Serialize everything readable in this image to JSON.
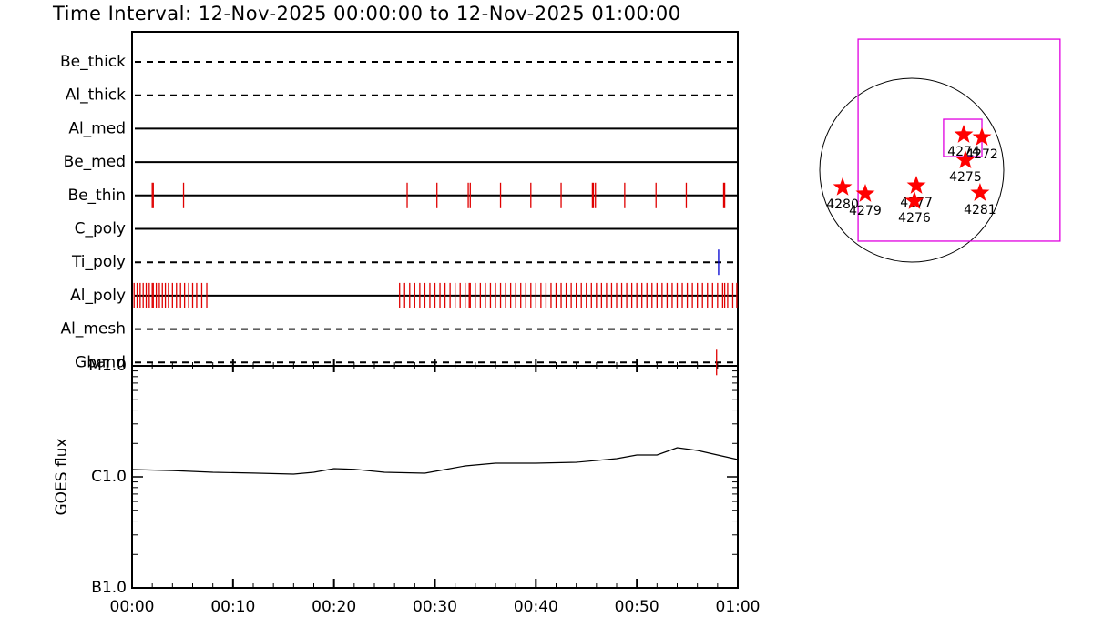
{
  "chart_data": [
    {
      "type": "event",
      "title": "Time Interval: 12-Nov-2025 00:00:00 to 12-Nov-2025 01:00:00",
      "xlim": [
        0,
        60
      ],
      "rows": [
        {
          "name": "Be_thick",
          "line": "dashed",
          "events": []
        },
        {
          "name": "Al_thick",
          "line": "dashed",
          "events": []
        },
        {
          "name": "Al_med",
          "line": "solid",
          "events": []
        },
        {
          "name": "Be_med",
          "line": "solid",
          "events": []
        },
        {
          "name": "Be_thin",
          "line": "solid",
          "color": "#e00000",
          "events": [
            2.0,
            2.1,
            5.1,
            27.25,
            30.2,
            33.3,
            33.5,
            36.5,
            39.5,
            42.5,
            45.6,
            45.7,
            45.9,
            48.8,
            51.9,
            54.9,
            58.6,
            58.7
          ]
        },
        {
          "name": "C_poly",
          "line": "solid",
          "events": []
        },
        {
          "name": "Ti_poly",
          "line": "dashed",
          "color": "#0000d0",
          "events": [
            58.1
          ]
        },
        {
          "name": "Al_poly",
          "line": "solid",
          "color": "#e00000",
          "events": [
            0.2,
            0.5,
            0.8,
            1.1,
            1.4,
            1.7,
            2.0,
            2.1,
            2.4,
            2.7,
            3.0,
            3.3,
            3.6,
            4.0,
            4.4,
            4.8,
            5.2,
            5.6,
            6.0,
            6.4,
            6.9,
            7.4,
            26.5,
            27,
            27.5,
            28,
            28.5,
            29,
            29.5,
            30,
            30.5,
            31,
            31.5,
            32,
            32.5,
            33,
            33.4,
            33.5,
            34,
            34.5,
            35,
            35.5,
            36,
            36.5,
            37,
            37.5,
            38,
            38.5,
            39,
            39.5,
            40,
            40.5,
            41,
            41.5,
            42,
            42.5,
            43,
            43.5,
            44,
            44.5,
            45,
            45.5,
            46,
            46.5,
            47,
            47.5,
            48,
            48.5,
            49,
            49.5,
            50,
            50.5,
            51,
            51.5,
            52,
            52.5,
            53,
            53.5,
            54,
            54.5,
            55,
            55.5,
            56,
            56.5,
            57,
            57.5,
            58,
            58.5,
            58.7,
            59,
            59.5,
            59.9
          ]
        },
        {
          "name": "Al_mesh",
          "line": "dashed",
          "events": []
        },
        {
          "name": "Gband",
          "line": "dashed",
          "color": "#e00000",
          "events": [
            57.9
          ]
        }
      ]
    },
    {
      "type": "line",
      "ylabel": "GOES flux",
      "log": true,
      "color": "#000000",
      "xlim": [
        0,
        60
      ],
      "ylim": [
        1e-07,
        1e-05
      ],
      "xticks": [
        {
          "value": 0,
          "label": "00:00"
        },
        {
          "value": 10,
          "label": "00:10"
        },
        {
          "value": 20,
          "label": "00:20"
        },
        {
          "value": 30,
          "label": "00:30"
        },
        {
          "value": 40,
          "label": "00:40"
        },
        {
          "value": 50,
          "label": "00:50"
        },
        {
          "value": 60,
          "label": "01:00"
        }
      ],
      "yticks": [
        {
          "value": 1e-07,
          "label": "B1.0"
        },
        {
          "value": 1e-06,
          "label": "C1.0"
        },
        {
          "value": 1e-05,
          "label": "M1.0"
        }
      ],
      "x": [
        0,
        4,
        8,
        12,
        16,
        18,
        20,
        22,
        25,
        29,
        31,
        33,
        36,
        40,
        44,
        48,
        50,
        52,
        54,
        56,
        58,
        60
      ],
      "values": [
        1.163e-06,
        1.14e-06,
        1.1e-06,
        1.08e-06,
        1.058e-06,
        1.1e-06,
        1.185e-06,
        1.17e-06,
        1.1e-06,
        1.079e-06,
        1.163e-06,
        1.254e-06,
        1.327e-06,
        1.327e-06,
        1.352e-06,
        1.459e-06,
        1.573e-06,
        1.573e-06,
        1.829e-06,
        1.729e-06,
        1.573e-06,
        1.432e-06
      ]
    },
    {
      "type": "map",
      "radius": 960,
      "box_color": "#e000e0",
      "star_color": "#ff0000",
      "boxes": [
        [
          -560,
          1368,
          1548,
          -741
        ],
        [
          332,
          532,
          732,
          142
        ]
      ],
      "regions": [
        {
          "label": "4274",
          "x": 542,
          "y": 371
        },
        {
          "label": "4272",
          "x": 732,
          "y": 342
        },
        {
          "label": "4275",
          "x": 560,
          "y": 104
        },
        {
          "label": "4277",
          "x": 48,
          "y": -162
        },
        {
          "label": "4276",
          "x": 28,
          "y": -323
        },
        {
          "label": "4280",
          "x": -722,
          "y": -180
        },
        {
          "label": "4279",
          "x": -485,
          "y": -247
        },
        {
          "label": "4281",
          "x": 712,
          "y": -238
        }
      ]
    }
  ]
}
